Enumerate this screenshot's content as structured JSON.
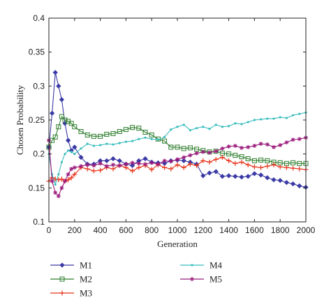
{
  "chart_data": {
    "type": "line",
    "title": "",
    "xlabel": "Generation",
    "ylabel": "Chosen Probability",
    "xlim": [
      0,
      2000
    ],
    "ylim": [
      0.1,
      0.4
    ],
    "xticks": [
      0,
      200,
      400,
      600,
      800,
      1000,
      1200,
      1400,
      1600,
      1800,
      2000
    ],
    "yticks": [
      0.1,
      0.15,
      0.2,
      0.25,
      0.3,
      0.35,
      0.4
    ],
    "ytick_labels": [
      "0.1",
      "0.15",
      "0.2",
      "0.25",
      "0.3",
      "0.35",
      "0.4"
    ],
    "grid": false,
    "legend_position": "bottom",
    "x": [
      0,
      25,
      50,
      75,
      100,
      125,
      150,
      175,
      200,
      250,
      300,
      350,
      400,
      450,
      500,
      550,
      600,
      650,
      700,
      750,
      800,
      850,
      900,
      950,
      1000,
      1050,
      1100,
      1150,
      1200,
      1250,
      1300,
      1350,
      1400,
      1450,
      1500,
      1550,
      1600,
      1650,
      1700,
      1750,
      1800,
      1850,
      1900,
      1950,
      2000
    ],
    "series": [
      {
        "name": "M1",
        "color": "#3a3aa6",
        "marker": "diamond",
        "values": [
          0.21,
          0.26,
          0.32,
          0.3,
          0.28,
          0.245,
          0.22,
          0.205,
          0.21,
          0.195,
          0.185,
          0.185,
          0.19,
          0.19,
          0.193,
          0.19,
          0.185,
          0.183,
          0.19,
          0.193,
          0.188,
          0.187,
          0.186,
          0.19,
          0.191,
          0.19,
          0.188,
          0.185,
          0.168,
          0.172,
          0.174,
          0.167,
          0.168,
          0.167,
          0.166,
          0.167,
          0.171,
          0.169,
          0.165,
          0.162,
          0.161,
          0.158,
          0.156,
          0.153,
          0.151
        ]
      },
      {
        "name": "M2",
        "color": "#2e7d2e",
        "marker": "square",
        "values": [
          0.21,
          0.22,
          0.225,
          0.24,
          0.255,
          0.25,
          0.248,
          0.245,
          0.24,
          0.233,
          0.228,
          0.226,
          0.226,
          0.229,
          0.23,
          0.233,
          0.236,
          0.239,
          0.238,
          0.232,
          0.228,
          0.222,
          0.219,
          0.21,
          0.21,
          0.208,
          0.209,
          0.207,
          0.205,
          0.203,
          0.204,
          0.201,
          0.2,
          0.198,
          0.196,
          0.193,
          0.19,
          0.191,
          0.19,
          0.188,
          0.187,
          0.186,
          0.187,
          0.186,
          0.186
        ]
      },
      {
        "name": "M3",
        "color": "#e8331a",
        "marker": "plus",
        "values": [
          0.16,
          0.165,
          0.163,
          0.162,
          0.163,
          0.16,
          0.162,
          0.165,
          0.17,
          0.18,
          0.178,
          0.175,
          0.176,
          0.18,
          0.178,
          0.183,
          0.18,
          0.175,
          0.18,
          0.183,
          0.177,
          0.184,
          0.18,
          0.178,
          0.184,
          0.18,
          0.185,
          0.183,
          0.19,
          0.188,
          0.192,
          0.195,
          0.19,
          0.186,
          0.188,
          0.184,
          0.181,
          0.18,
          0.182,
          0.184,
          0.181,
          0.18,
          0.179,
          0.178,
          0.177
        ]
      },
      {
        "name": "M4",
        "color": "#3bbdbd",
        "marker": "point",
        "values": [
          0.2,
          0.17,
          0.155,
          0.17,
          0.188,
          0.2,
          0.205,
          0.203,
          0.2,
          0.208,
          0.215,
          0.212,
          0.213,
          0.215,
          0.214,
          0.216,
          0.218,
          0.219,
          0.222,
          0.224,
          0.222,
          0.221,
          0.225,
          0.236,
          0.24,
          0.243,
          0.235,
          0.238,
          0.24,
          0.237,
          0.243,
          0.24,
          0.241,
          0.245,
          0.244,
          0.247,
          0.25,
          0.251,
          0.252,
          0.252,
          0.254,
          0.253,
          0.257,
          0.259,
          0.261
        ]
      },
      {
        "name": "M5",
        "color": "#9b1a7b",
        "marker": "star",
        "values": [
          0.22,
          0.16,
          0.143,
          0.138,
          0.15,
          0.16,
          0.17,
          0.178,
          0.18,
          0.182,
          0.184,
          0.183,
          0.186,
          0.182,
          0.184,
          0.183,
          0.185,
          0.187,
          0.186,
          0.185,
          0.187,
          0.185,
          0.19,
          0.189,
          0.192,
          0.195,
          0.198,
          0.201,
          0.203,
          0.202,
          0.204,
          0.208,
          0.211,
          0.212,
          0.209,
          0.21,
          0.212,
          0.215,
          0.214,
          0.21,
          0.213,
          0.217,
          0.221,
          0.222,
          0.224
        ]
      }
    ]
  }
}
